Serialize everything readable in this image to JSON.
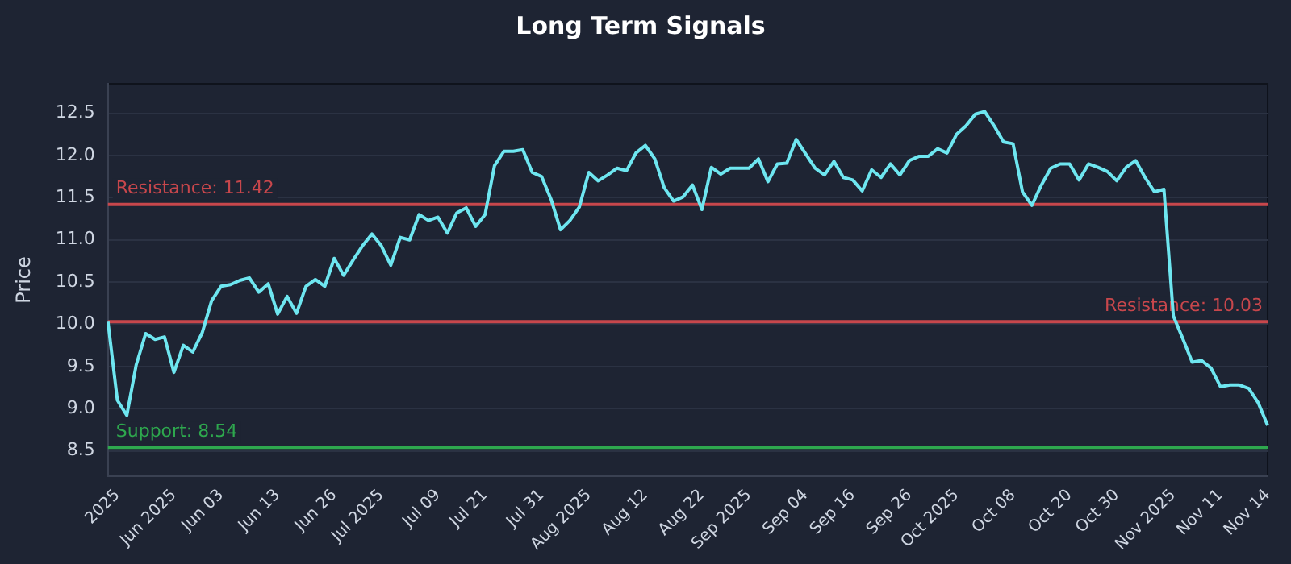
{
  "chart_data": {
    "type": "line",
    "title": "Long Term Signals",
    "ylabel": "Price",
    "categories": [
      null,
      "2025",
      null,
      null,
      null,
      null,
      null,
      "Jun 2025",
      null,
      null,
      null,
      null,
      "Jun 03",
      null,
      null,
      null,
      null,
      null,
      "Jun 13",
      null,
      null,
      null,
      null,
      null,
      "Jun 26",
      null,
      null,
      null,
      null,
      "Jul 2025",
      null,
      null,
      null,
      null,
      null,
      "Jul 09",
      null,
      null,
      null,
      null,
      "Jul 21",
      null,
      null,
      null,
      null,
      null,
      "Jul 31",
      null,
      null,
      null,
      null,
      "Aug 2025",
      null,
      null,
      null,
      null,
      null,
      "Aug 12",
      null,
      null,
      null,
      null,
      null,
      "Aug 22",
      null,
      null,
      null,
      null,
      "Sep 2025",
      null,
      null,
      null,
      null,
      null,
      "Sep 04",
      null,
      null,
      null,
      null,
      "Sep 16",
      null,
      null,
      null,
      null,
      null,
      "Sep 26",
      null,
      null,
      null,
      null,
      "Oct 2025",
      null,
      null,
      null,
      null,
      null,
      "Oct 08",
      null,
      null,
      null,
      null,
      null,
      "Oct 20",
      null,
      null,
      null,
      null,
      "Oct 30",
      null,
      null,
      null,
      null,
      null,
      "Nov 2025",
      null,
      null,
      null,
      null,
      "Nov 11",
      null,
      null,
      null,
      null,
      "Nov 14"
    ],
    "series": [
      {
        "color": "#6ee6f0",
        "values": [
          10.03,
          9.1,
          8.92,
          9.52,
          9.89,
          9.82,
          9.85,
          9.43,
          9.75,
          9.67,
          9.9,
          10.28,
          10.45,
          10.47,
          10.52,
          10.55,
          10.38,
          10.48,
          10.12,
          10.33,
          10.13,
          10.45,
          10.53,
          10.45,
          10.78,
          10.58,
          10.76,
          10.93,
          11.07,
          10.93,
          10.7,
          11.03,
          11.0,
          11.3,
          11.23,
          11.27,
          11.08,
          11.32,
          11.38,
          11.16,
          11.3,
          11.88,
          12.05,
          12.05,
          12.07,
          11.8,
          11.75,
          11.48,
          11.12,
          11.23,
          11.39,
          11.8,
          11.7,
          11.77,
          11.85,
          11.82,
          12.03,
          12.12,
          11.96,
          11.62,
          11.46,
          11.51,
          11.65,
          11.36,
          11.86,
          11.78,
          11.85,
          11.85,
          11.85,
          11.96,
          11.69,
          11.9,
          11.91,
          12.19,
          12.02,
          11.85,
          11.77,
          11.93,
          11.74,
          11.71,
          11.58,
          11.83,
          11.74,
          11.9,
          11.77,
          11.94,
          11.99,
          11.99,
          12.08,
          12.03,
          12.25,
          12.35,
          12.49,
          12.52,
          12.35,
          12.16,
          12.14,
          11.57,
          11.41,
          11.65,
          11.85,
          11.9,
          11.9,
          11.71,
          11.9,
          11.86,
          11.81,
          11.7,
          11.86,
          11.94,
          11.74,
          11.57,
          11.6,
          10.1,
          9.83,
          9.55,
          9.57,
          9.48,
          9.26,
          9.28,
          9.28,
          9.24,
          9.07,
          8.8
        ]
      }
    ],
    "ylim": [
      8.2,
      12.85
    ],
    "yticks": [
      8.5,
      {
        "value": 9,
        "label": "9.0"
      },
      9.5,
      {
        "value": 10,
        "label": "10.0"
      },
      10.5,
      {
        "value": 11,
        "label": "11.0"
      },
      11.5,
      {
        "value": 12,
        "label": "12.0"
      },
      12.5
    ],
    "ref_lines": [
      {
        "axis": "y",
        "value": 11.42,
        "label": "Resistance: 11.42",
        "color": "#c8474c"
      },
      {
        "axis": "y",
        "value": 10.03,
        "label": "Resistance: 10.03",
        "color": "#c8474c"
      },
      {
        "axis": "y",
        "value": 8.54,
        "label": "Support: 8.54",
        "color": "#2ea84e"
      }
    ],
    "grid": "y",
    "legend": false,
    "marker": "none",
    "line_style": "solid"
  }
}
